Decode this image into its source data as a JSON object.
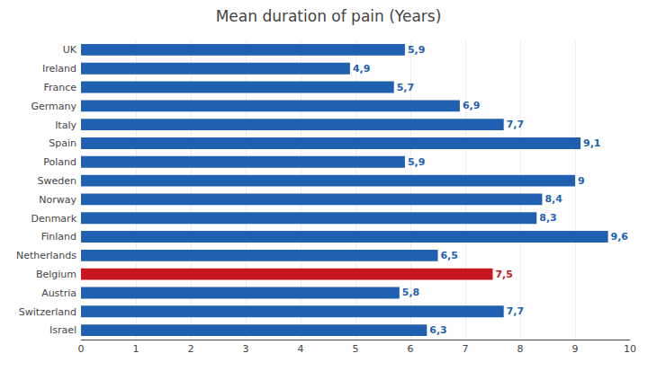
{
  "chart_data": {
    "type": "bar",
    "orientation": "horizontal",
    "title": "Mean duration of pain (Years)",
    "categories": [
      "UK",
      "Ireland",
      "France",
      "Germany",
      "Italy",
      "Spain",
      "Poland",
      "Sweden",
      "Norway",
      "Denmark",
      "Finland",
      "Netherlands",
      "Belgium",
      "Austria",
      "Switzerland",
      "Israel"
    ],
    "values": [
      5.9,
      4.9,
      5.7,
      6.9,
      7.7,
      9.1,
      5.9,
      9.0,
      8.4,
      8.3,
      9.6,
      6.5,
      7.5,
      5.8,
      7.7,
      6.3
    ],
    "value_labels": [
      "5,9",
      "4,9",
      "5,7",
      "6,9",
      "7,7",
      "9,1",
      "5,9",
      "9",
      "8,4",
      "8,3",
      "9,6",
      "6,5",
      "7,5",
      "5,8",
      "7,7",
      "6,3"
    ],
    "data_labels": true,
    "colors": [
      "#2060b0",
      "#2060b0",
      "#2060b0",
      "#2060b0",
      "#2060b0",
      "#2060b0",
      "#2060b0",
      "#2060b0",
      "#2060b0",
      "#2060b0",
      "#2060b0",
      "#2060b0",
      "#c8151e",
      "#2060b0",
      "#2060b0",
      "#2060b0"
    ],
    "xlim": [
      0,
      10
    ],
    "xticks": [
      0,
      1,
      2,
      3,
      4,
      5,
      6,
      7,
      8,
      9,
      10
    ],
    "grid": true
  }
}
